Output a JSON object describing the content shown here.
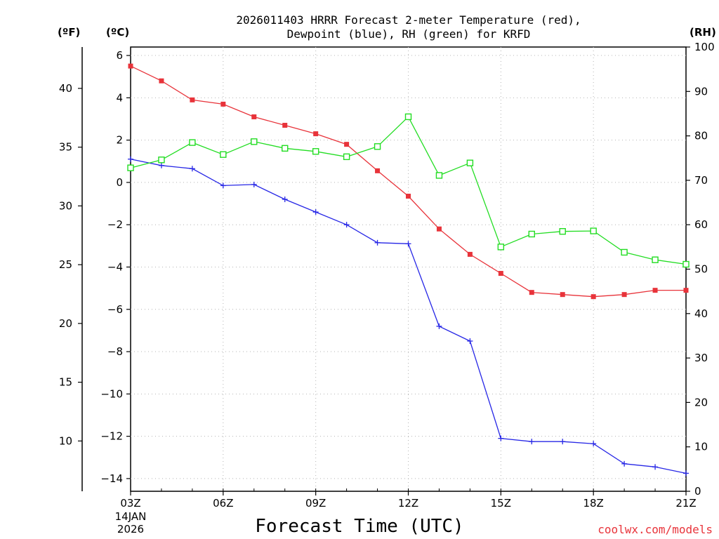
{
  "chart_data": {
    "type": "line",
    "title_line1": "2026011403 HRRR Forecast 2-meter Temperature (red),",
    "title_line2": "Dewpoint (blue), RH (green) for KRFD",
    "xlabel": "Forecast Time (UTC)",
    "credit": "coolwx.com/models",
    "left_unit_f": "(ºF)",
    "left_unit_c": "(ºC)",
    "right_unit": "(RH)",
    "date_label_line1": "14JAN",
    "date_label_line2": "2026",
    "x_hours": [
      3,
      4,
      5,
      6,
      7,
      8,
      9,
      10,
      11,
      12,
      13,
      14,
      15,
      16,
      17,
      18,
      19,
      20,
      21
    ],
    "x_tick_labels": [
      "03Z",
      "06Z",
      "09Z",
      "12Z",
      "15Z",
      "18Z",
      "21Z"
    ],
    "xlim": [
      3,
      21
    ],
    "ylim_c": [
      -14.6,
      6.4
    ],
    "c_ticks": [
      6,
      4,
      2,
      0,
      -2,
      -4,
      -6,
      -8,
      -10,
      -12,
      -14
    ],
    "c_tick_labels": [
      "6",
      "4",
      "2",
      "0",
      "−2",
      "−4",
      "−6",
      "−8",
      "−10",
      "−12",
      "−14"
    ],
    "f_ticks": [
      40,
      35,
      30,
      25,
      20,
      15,
      10
    ],
    "f_tick_labels": [
      "40",
      "35",
      "30",
      "25",
      "20",
      "15",
      "10"
    ],
    "ylim_rh": [
      0,
      100
    ],
    "rh_ticks": [
      100,
      90,
      80,
      70,
      60,
      50,
      40,
      30,
      20,
      10,
      0
    ],
    "rh_tick_labels": [
      "100",
      "90",
      "80",
      "70",
      "60",
      "50",
      "40",
      "30",
      "20",
      "10",
      "0"
    ],
    "grid": true,
    "series": [
      {
        "name": "Temperature",
        "axis": "c",
        "color": "#e8333a",
        "marker": "filled-square",
        "values": [
          5.5,
          4.8,
          3.9,
          3.7,
          3.1,
          2.7,
          2.3,
          1.8,
          0.55,
          -0.65,
          -2.2,
          -3.4,
          -4.3,
          -5.2,
          -5.3,
          -5.4,
          -5.3,
          -5.1,
          -5.1
        ]
      },
      {
        "name": "Dewpoint",
        "axis": "c",
        "color": "#2727e6",
        "marker": "plus",
        "values": [
          1.1,
          0.8,
          0.65,
          -0.15,
          -0.1,
          -0.8,
          -1.4,
          -2.0,
          -2.85,
          -2.9,
          -6.8,
          -7.5,
          -12.1,
          -12.25,
          -12.25,
          -12.35,
          -13.3,
          -13.45,
          -13.75
        ]
      },
      {
        "name": "RH",
        "axis": "rh",
        "color": "#22dd22",
        "marker": "open-square",
        "values": [
          72.8,
          74.6,
          78.5,
          75.8,
          78.7,
          77.2,
          76.5,
          75.3,
          77.6,
          84.3,
          71.1,
          73.9,
          55.0,
          57.9,
          58.5,
          58.6,
          53.8,
          52.1,
          51.1
        ]
      }
    ]
  }
}
